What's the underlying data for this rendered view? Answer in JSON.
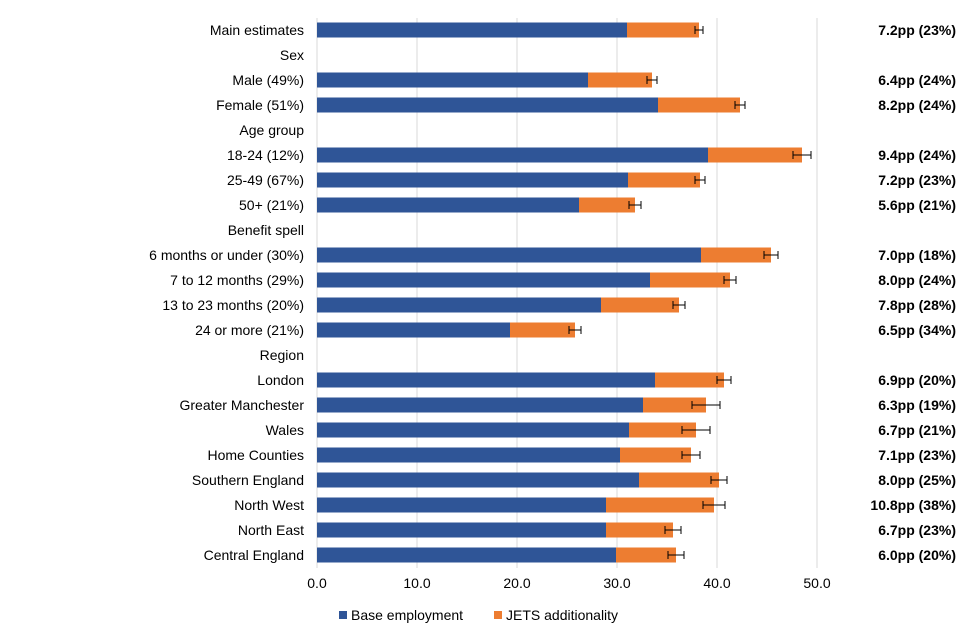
{
  "chart_data": {
    "type": "bar",
    "orientation": "horizontal",
    "stacked": true,
    "xlim": [
      0,
      50
    ],
    "xticks": [
      "0.0",
      "10.0",
      "20.0",
      "30.0",
      "40.0",
      "50.0"
    ],
    "xtick_values": [
      0,
      10,
      20,
      30,
      40,
      50
    ],
    "grid": true,
    "legend_position": "bottom",
    "categories": [
      "Main estimates",
      "Sex",
      "Male (49%)",
      "Female (51%)",
      "Age group",
      "18-24 (12%)",
      "25-49 (67%)",
      "50+ (21%)",
      "Benefit spell",
      "6 months or under (30%)",
      "7 to 12 months (29%)",
      "13 to 23 months (20%)",
      "24 or more (21%)",
      "Region",
      "London",
      "Greater Manchester",
      "Wales",
      "Home Counties",
      "Southern England",
      "North West",
      "North East",
      "Central England"
    ],
    "series": [
      {
        "name": "Base employment",
        "color": "#2F5597",
        "values": [
          31.0,
          null,
          27.1,
          34.1,
          null,
          39.1,
          31.1,
          26.2,
          null,
          38.4,
          33.3,
          28.4,
          19.3,
          null,
          33.8,
          32.6,
          31.2,
          30.3,
          32.2,
          28.9,
          28.9,
          29.9
        ]
      },
      {
        "name": "JETS additionality",
        "color": "#ED7D31",
        "values": [
          7.2,
          null,
          6.4,
          8.2,
          null,
          9.4,
          7.2,
          5.6,
          null,
          7.0,
          8.0,
          7.8,
          6.5,
          null,
          6.9,
          6.3,
          6.7,
          7.1,
          8.0,
          10.8,
          6.7,
          6.0
        ]
      }
    ],
    "error_bars": [
      0.4,
      null,
      0.5,
      0.5,
      null,
      0.9,
      0.5,
      0.6,
      null,
      0.7,
      0.6,
      0.6,
      0.6,
      null,
      0.7,
      1.4,
      1.4,
      0.9,
      0.8,
      1.1,
      0.8,
      0.8
    ],
    "annotations": [
      "7.2pp (23%)",
      "",
      "6.4pp (24%)",
      "8.2pp (24%)",
      "",
      "9.4pp (24%)",
      "7.2pp (23%)",
      "5.6pp (21%)",
      "",
      "7.0pp (18%)",
      "8.0pp (24%)",
      "7.8pp (28%)",
      "6.5pp (34%)",
      "",
      "6.9pp (20%)",
      "6.3pp (19%)",
      "6.7pp (21%)",
      "7.1pp (23%)",
      "8.0pp (25%)",
      "10.8pp (38%)",
      "6.7pp (23%)",
      "6.0pp (20%)"
    ],
    "legend": [
      "Base employment",
      "JETS additionality"
    ]
  }
}
